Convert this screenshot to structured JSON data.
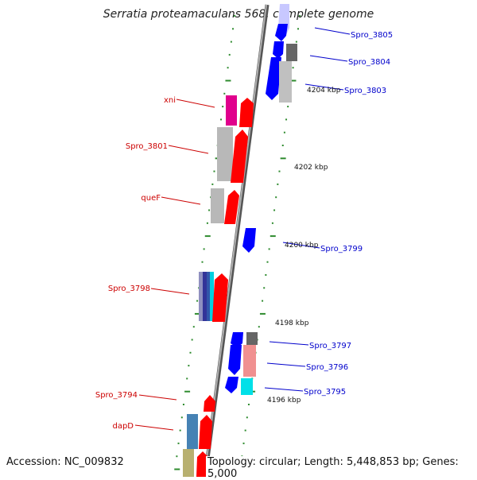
{
  "title": "Serratia proteamaculans 568, complete genome",
  "accession": "Accession: NC_009832",
  "topology": "Topology: circular; Length: 5,448,853 bp; Genes: 5,000",
  "colors": {
    "backbone": "#8c8c8c",
    "tick": "#2e8b2e",
    "reverse_label": "#cc0000",
    "forward_label": "#0000cc"
  },
  "kbp_labels": [
    "4204 kbp",
    "4202 kbp",
    "4200 kbp",
    "4198 kbp",
    "4196 kbp"
  ],
  "reverse_genes": [
    "xni",
    "Spro_3801",
    "queF",
    "Spro_3798",
    "Spro_3794",
    "dapD"
  ],
  "forward_genes": [
    "Spro_3805",
    "Spro_3804",
    "Spro_3803",
    "Spro_3799",
    "Spro_3797",
    "Spro_3796",
    "Spro_3795"
  ]
}
